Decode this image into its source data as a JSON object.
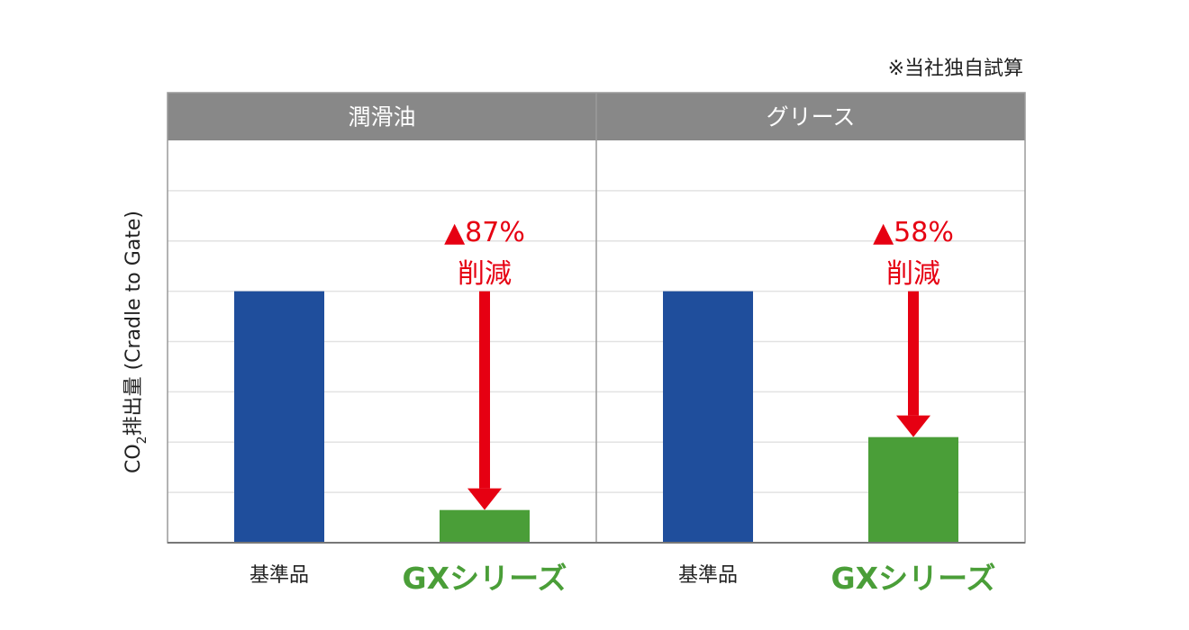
{
  "note": "※当社独自試算",
  "ylabel": {
    "prefix": "CO",
    "subscript": "2",
    "suffix": "排出量 (Cradle to Gate)"
  },
  "colors": {
    "baseline": "#1f4e9c",
    "gx": "#4a9e38",
    "arrow": "#e60012",
    "header_bg": "#888888",
    "header_text": "#ffffff",
    "grid": "#e2e2e2",
    "frame": "#9a9a9a"
  },
  "chart_data": [
    {
      "type": "bar",
      "title": "潤滑油",
      "categories": [
        "基準品",
        "GXシリーズ"
      ],
      "values": [
        100,
        13
      ],
      "ylim": [
        0,
        160
      ],
      "grid": true,
      "annotation": {
        "pct": "▲87%",
        "label": "削減"
      }
    },
    {
      "type": "bar",
      "title": "グリース",
      "categories": [
        "基準品",
        "GXシリーズ"
      ],
      "values": [
        100,
        42
      ],
      "ylim": [
        0,
        160
      ],
      "grid": true,
      "annotation": {
        "pct": "▲58%",
        "label": "削減"
      }
    }
  ]
}
